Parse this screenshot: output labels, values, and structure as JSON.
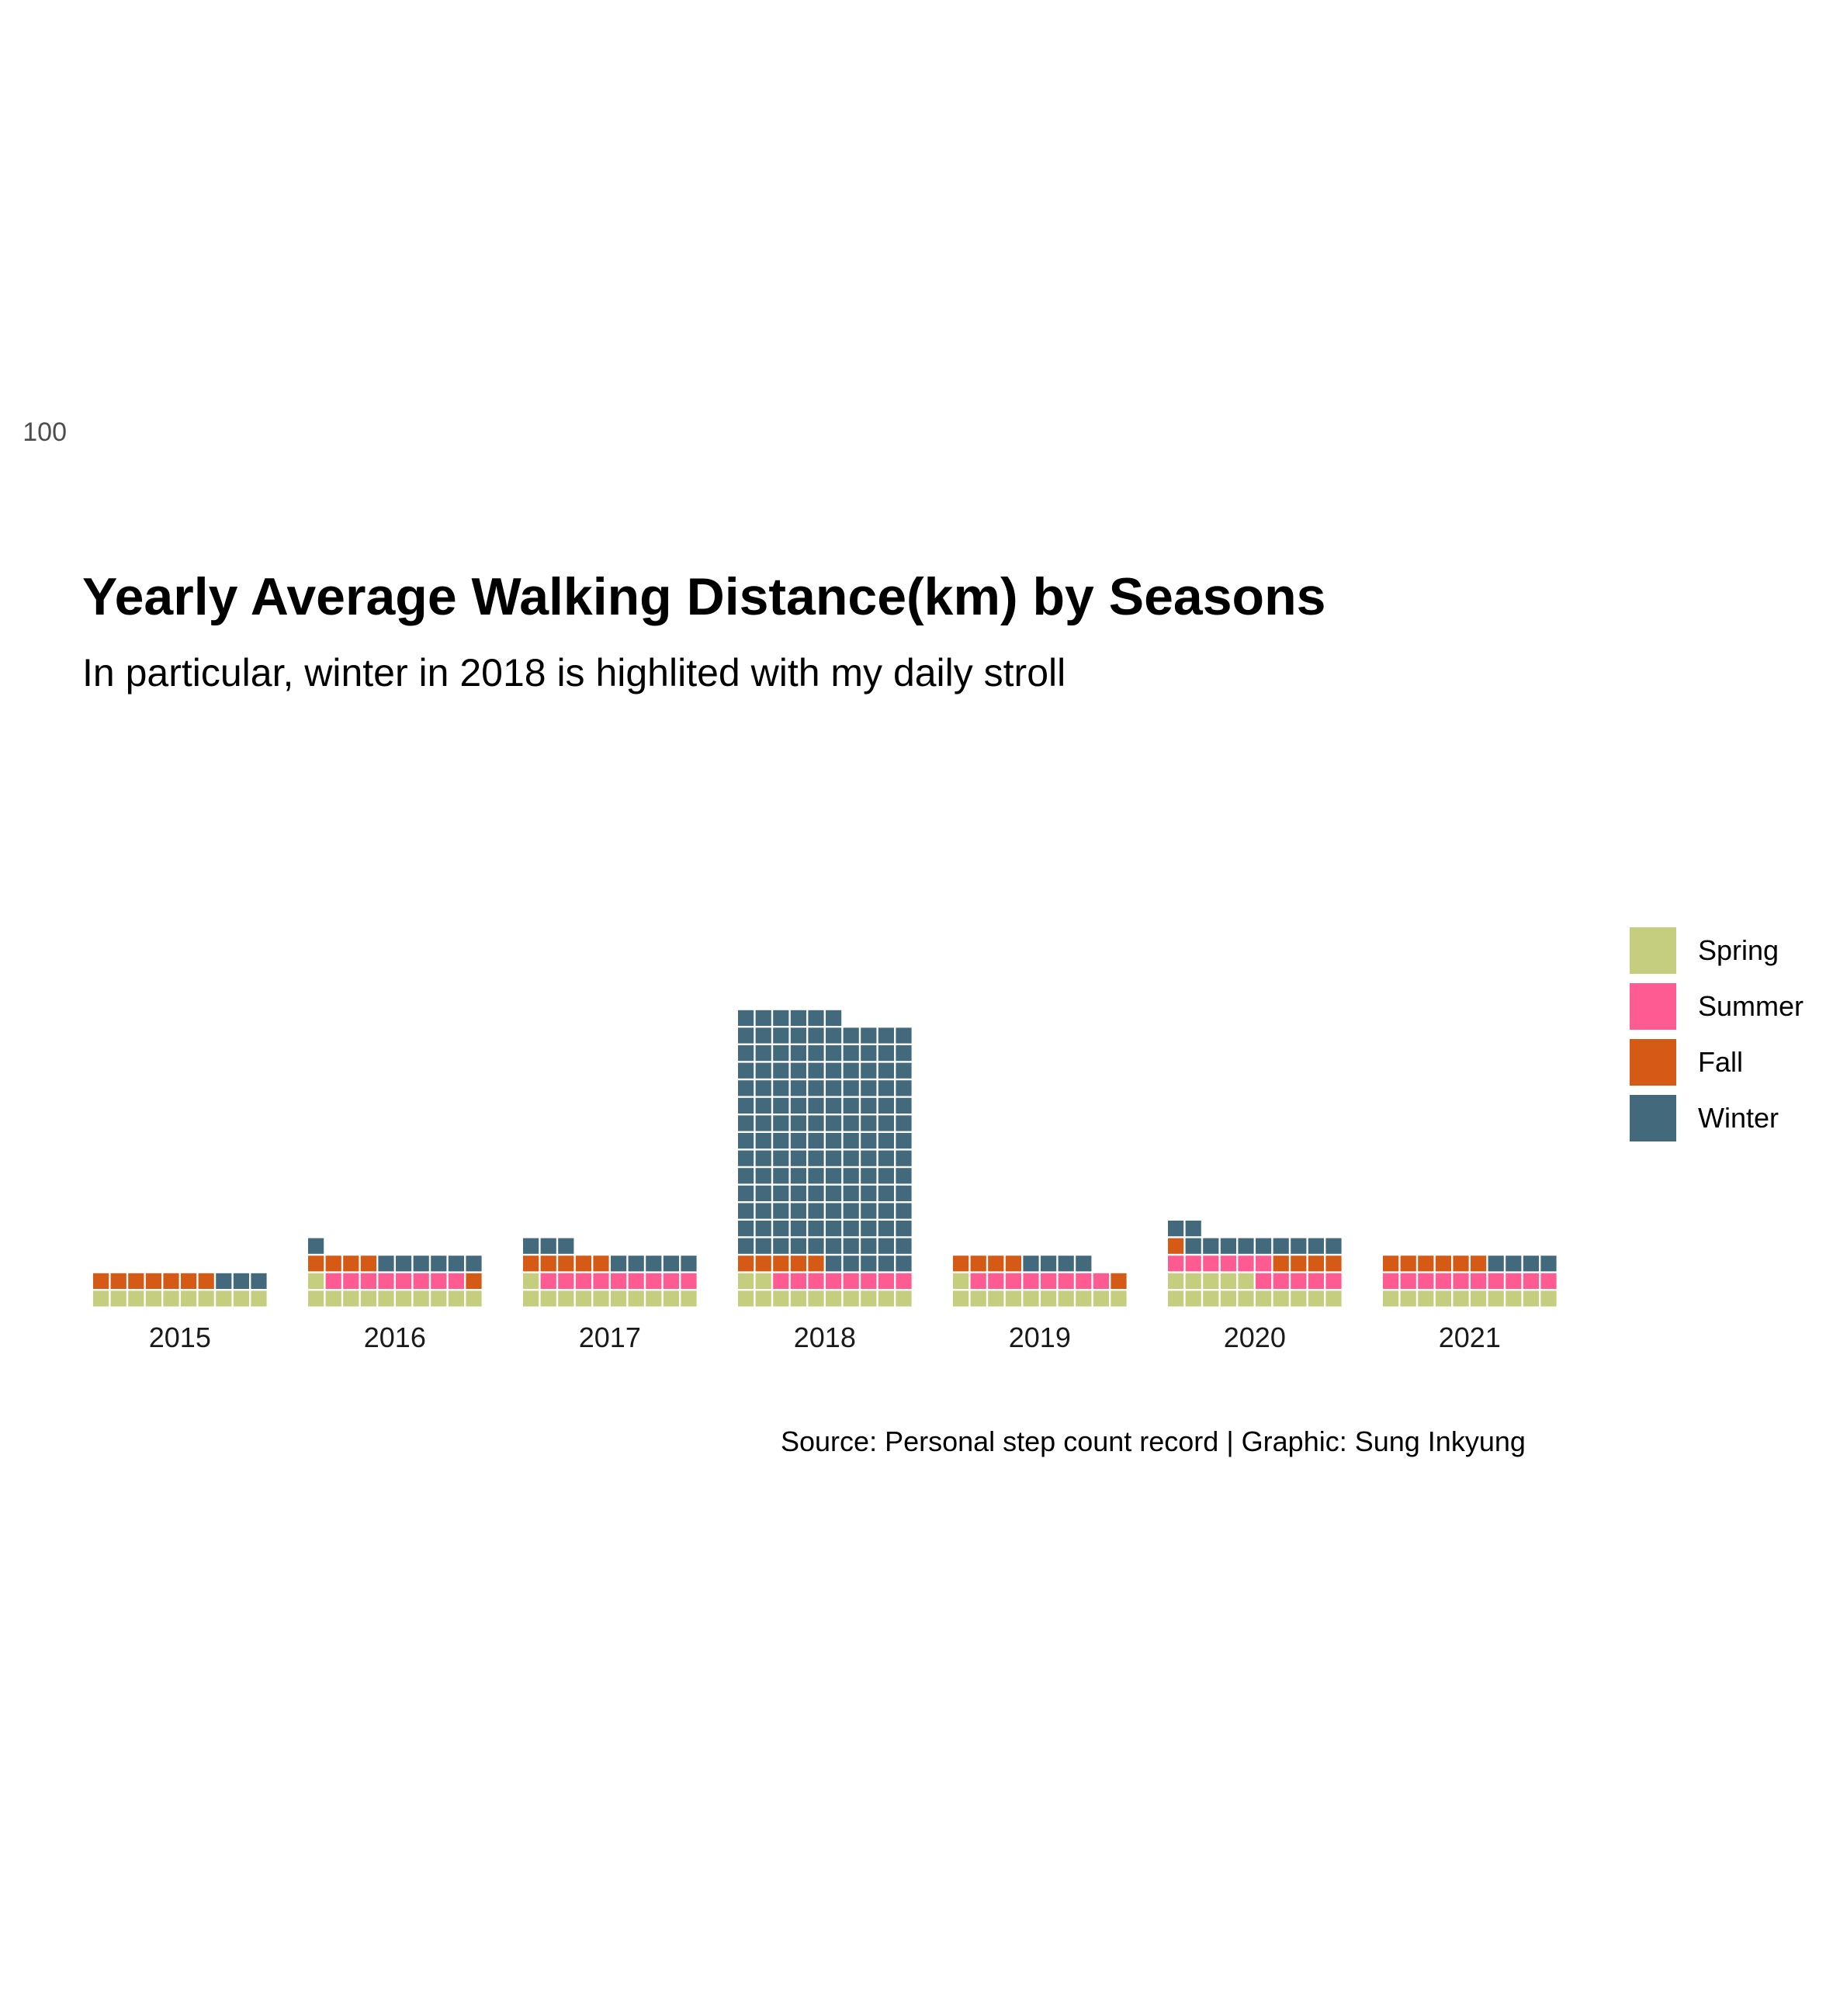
{
  "title": "Yearly Average Walking Distance(km) by Seasons",
  "subtitle": "In particular, winter in 2018 is highlited with my daily stroll",
  "caption": "Source: Personal step count record | Graphic: Sung Inkyung",
  "colors": {
    "Spring": "#C5CD7F",
    "Summer": "#FF5B93",
    "Fall": "#D45A15",
    "Winter": "#436A7C"
  },
  "chart_data": {
    "type": "bar",
    "subtype": "waffle-stacked",
    "units_per_square": 2,
    "squares_per_row": 10,
    "categories": [
      "2015",
      "2016",
      "2017",
      "2018",
      "2019",
      "2020",
      "2021"
    ],
    "series": [
      {
        "name": "Spring",
        "values": [
          20,
          22,
          22,
          24,
          22,
          30,
          20
        ]
      },
      {
        "name": "Summer",
        "values": [
          0,
          16,
          18,
          16,
          16,
          22,
          20
        ]
      },
      {
        "name": "Fall",
        "values": [
          14,
          10,
          10,
          10,
          10,
          10,
          12
        ]
      },
      {
        "name": "Winter",
        "values": [
          6,
          14,
          16,
          282,
          8,
          22,
          8
        ]
      }
    ],
    "yticks": [
      100,
      200,
      300
    ],
    "ylim": [
      0,
      330
    ],
    "grid": false,
    "legend_position": "right"
  },
  "legend": {
    "items": [
      {
        "label": "Spring"
      },
      {
        "label": "Summer"
      },
      {
        "label": "Fall"
      },
      {
        "label": "Winter"
      }
    ]
  }
}
